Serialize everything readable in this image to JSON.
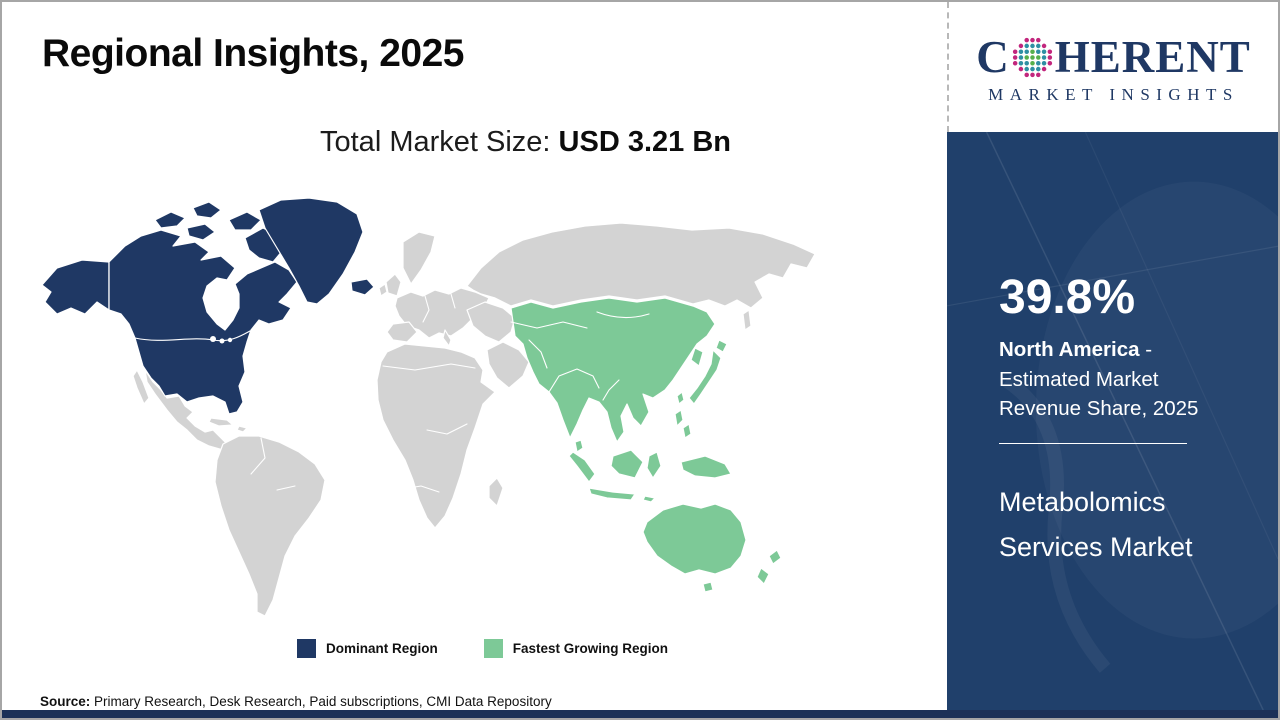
{
  "slide": {
    "title": "Regional Insights, 2025",
    "subtitle_label": "Total Market Size:",
    "subtitle_value": "USD 3.21 Bn",
    "source_label": "Source:",
    "source_text": "Primary Research, Desk Research, Paid subscriptions, CMI Data Repository"
  },
  "logo": {
    "word_start": "C",
    "word_end": "HERENT",
    "tagline": "MARKET INSIGHTS",
    "globe_icon": "dotted-globe-icon"
  },
  "sidebar": {
    "share_value": "39.8%",
    "share_region": "North America",
    "share_desc": "- Estimated Market Revenue Share, 2025",
    "market_name": "Metabolomics Services Market"
  },
  "legend": {
    "items": [
      {
        "label": "Dominant Region",
        "color": "#1f3864"
      },
      {
        "label": "Fastest Growing Region",
        "color": "#7dc997"
      }
    ]
  },
  "map": {
    "regions": [
      {
        "name": "North America",
        "role": "dominant",
        "fill": "#1f3864"
      },
      {
        "name": "Asia Pacific",
        "role": "fastest_growing",
        "fill": "#7dc997"
      },
      {
        "name": "Rest of World",
        "role": "other",
        "fill": "#d3d3d3"
      }
    ]
  },
  "theme": {
    "navy": "#1f3864",
    "green": "#7dc997",
    "gray_land": "#d3d3d3",
    "sidebar_bg": "#20406b",
    "bottom_bar": "#1b3157",
    "border_gray": "#a6a6a6",
    "logo_navy": "#1f3864",
    "logo_teal": "#2e8fa3",
    "logo_green": "#56b04c",
    "logo_pink": "#c2267d"
  }
}
